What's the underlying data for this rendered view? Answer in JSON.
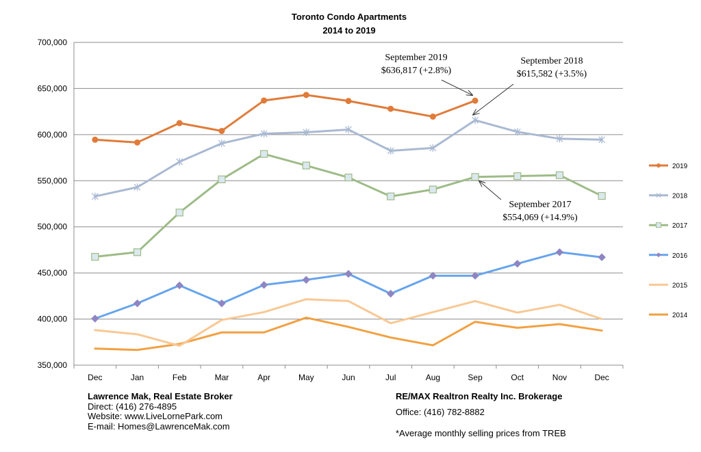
{
  "chart_data": {
    "type": "line",
    "title": "Toronto Condo Apartments",
    "subtitle": "2014 to 2019",
    "xlabel": "",
    "ylabel": "",
    "categories": [
      "Dec",
      "Jan",
      "Feb",
      "Mar",
      "Apr",
      "May",
      "Jun",
      "Jul",
      "Aug",
      "Sep",
      "Oct",
      "Nov",
      "Dec"
    ],
    "ylim": [
      350000,
      700000
    ],
    "yticks": [
      350000,
      400000,
      450000,
      500000,
      550000,
      600000,
      650000,
      700000
    ],
    "ytick_labels": [
      "350,000",
      "400,000",
      "450,000",
      "500,000",
      "550,000",
      "600,000",
      "650,000",
      "700,000"
    ],
    "grid": true,
    "legend_position": "right",
    "series": [
      {
        "name": "2019",
        "color": "#E07B39",
        "marker": "circle",
        "values": [
          594500,
          591500,
          612500,
          604000,
          637000,
          643000,
          636500,
          628000,
          619500,
          636817,
          null,
          null,
          null
        ]
      },
      {
        "name": "2018",
        "color": "#A9B9D2",
        "marker": "star",
        "values": [
          533000,
          543000,
          570500,
          590500,
          601000,
          602500,
          605500,
          582500,
          585500,
          615582,
          603000,
          595500,
          594500
        ]
      },
      {
        "name": "2017",
        "color": "#9DBB87",
        "marker": "square",
        "values": [
          467500,
          472500,
          515500,
          551500,
          579000,
          566500,
          553500,
          533000,
          540500,
          554069,
          555000,
          556000,
          533500
        ]
      },
      {
        "name": "2016",
        "color": "#67A4EC",
        "marker": "diamond",
        "values": [
          400500,
          417000,
          436500,
          417000,
          437000,
          442500,
          449000,
          427500,
          447000,
          447000,
          460000,
          472500,
          467000
        ]
      },
      {
        "name": "2015",
        "color": "#F8C894",
        "marker": "none",
        "values": [
          388000,
          383500,
          371000,
          399000,
          407500,
          421500,
          419500,
          395500,
          407500,
          419500,
          407000,
          415500,
          400000
        ]
      },
      {
        "name": "2014",
        "color": "#F2A041",
        "marker": "none",
        "values": [
          368000,
          366500,
          373000,
          385500,
          385500,
          401500,
          391500,
          380000,
          371500,
          397000,
          390500,
          394500,
          387500
        ]
      }
    ],
    "annotations": [
      {
        "line1": "September 2019",
        "line2": "$636,817 (+2.8%)",
        "target_series": "2019",
        "target_category_index": 9
      },
      {
        "line1": "September 2018",
        "line2": "$615,582 (+3.5%)",
        "target_series": "2018",
        "target_category_index": 9
      },
      {
        "line1": "September 2017",
        "line2": "$554,069 (+14.9%)",
        "target_series": "2017",
        "target_category_index": 9
      }
    ]
  },
  "footer": {
    "left": {
      "name": "Lawrence Mak, Real Estate Broker",
      "direct": "Direct:  (416) 276-4895",
      "website": "Website:  www.LiveLornePark.com",
      "email": "E-mail:  Homes@LawrenceMak.com"
    },
    "right": {
      "brokerage": "RE/MAX Realtron Realty Inc. Brokerage",
      "office": "Office: (416) 782-8882",
      "note": "*Average monthly selling prices from TREB"
    }
  }
}
